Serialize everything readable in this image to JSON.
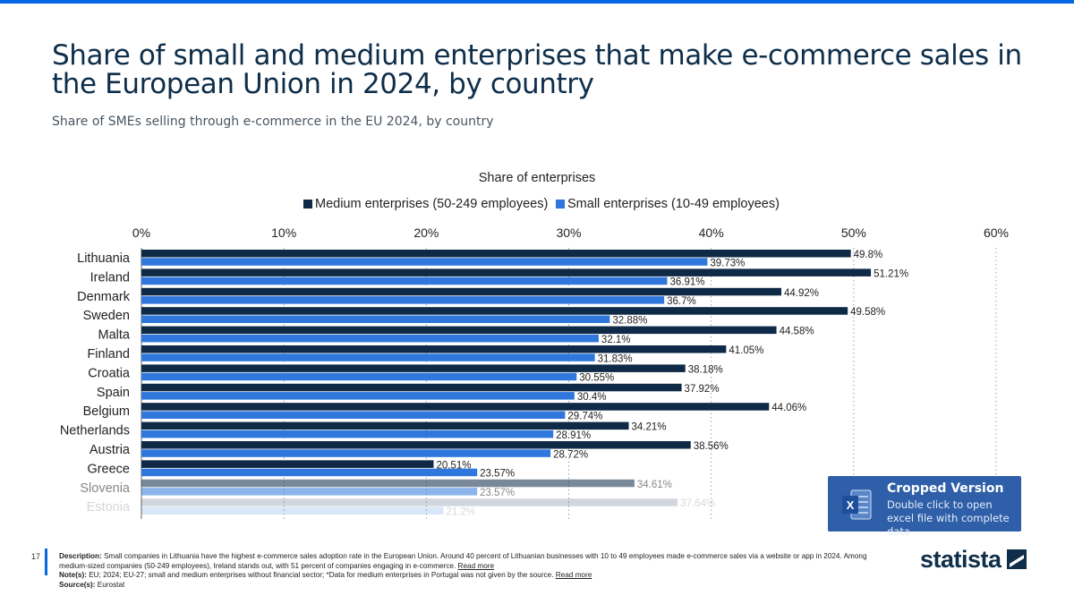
{
  "header": {
    "title": "Share of small and medium enterprises that make e-commerce sales in the European Union in 2024, by country",
    "subtitle": "Share of SMEs selling through e-commerce in the EU 2024, by country"
  },
  "chart_data": {
    "type": "bar",
    "orientation": "horizontal",
    "title": "Share of enterprises",
    "legend_position": "top",
    "categories": [
      "Lithuania",
      "Ireland",
      "Denmark",
      "Sweden",
      "Malta",
      "Finland",
      "Croatia",
      "Spain",
      "Belgium",
      "Netherlands",
      "Austria",
      "Greece",
      "Slovenia",
      "Estonia"
    ],
    "series": [
      {
        "name": "Medium enterprises (50-249 employees)",
        "color": "#0e2a47",
        "values": [
          49.8,
          51.21,
          44.92,
          49.58,
          44.58,
          41.05,
          38.18,
          37.92,
          44.06,
          34.21,
          38.56,
          20.51,
          34.61,
          37.64
        ],
        "labels": [
          "49.8%",
          "51.21%",
          "44.92%",
          "49.58%",
          "44.58%",
          "41.05%",
          "38.18%",
          "37.92%",
          "44.06%",
          "34.21%",
          "38.56%",
          "20.51%",
          "34.61%",
          "37.64%"
        ]
      },
      {
        "name": "Small enterprises (10-49 employees)",
        "color": "#2f77dc",
        "values": [
          39.73,
          36.91,
          36.7,
          32.88,
          32.1,
          31.83,
          30.55,
          30.4,
          29.74,
          28.91,
          28.72,
          23.57,
          23.57,
          21.2
        ],
        "labels": [
          "39.73%",
          "36.91%",
          "36.7%",
          "32.88%",
          "32.1%",
          "31.83%",
          "30.55%",
          "30.4%",
          "29.74%",
          "28.91%",
          "28.72%",
          "23.57%",
          "23.57%",
          "21.2%"
        ]
      }
    ],
    "xlim": [
      0,
      60
    ],
    "x_ticks": [
      0,
      10,
      20,
      30,
      40,
      50,
      60
    ],
    "x_tick_labels": [
      "0%",
      "10%",
      "20%",
      "30%",
      "40%",
      "50%",
      "60%"
    ],
    "grid": "vertical-dotted"
  },
  "excel": {
    "title": "Cropped Version",
    "text": "Double click to open excel file with complete data",
    "icon": "excel-icon"
  },
  "footer": {
    "page_number": "17",
    "description_label": "Description:",
    "description": "Small companies in Lithuania have the highest e-commerce sales adoption rate in the European Union. Around 40 percent of Lithuanian businesses with 10 to 49 employees made e-commerce sales via a website or app in 2024. Among medium-sized companies (50-249 employees), Ireland stands out, with 51 percent of companies engaging in e-commerce.",
    "read_more": "Read more",
    "note_label": "Note(s):",
    "note": "EU; 2024; EU-27; small and medium enterprises without financial sector; *Data for medium enterprises in Portugal was not given by the source.",
    "source_label": "Source(s):",
    "source": "Eurostat"
  },
  "logo": {
    "text": "statista",
    "icon": "statista-logo-icon"
  }
}
